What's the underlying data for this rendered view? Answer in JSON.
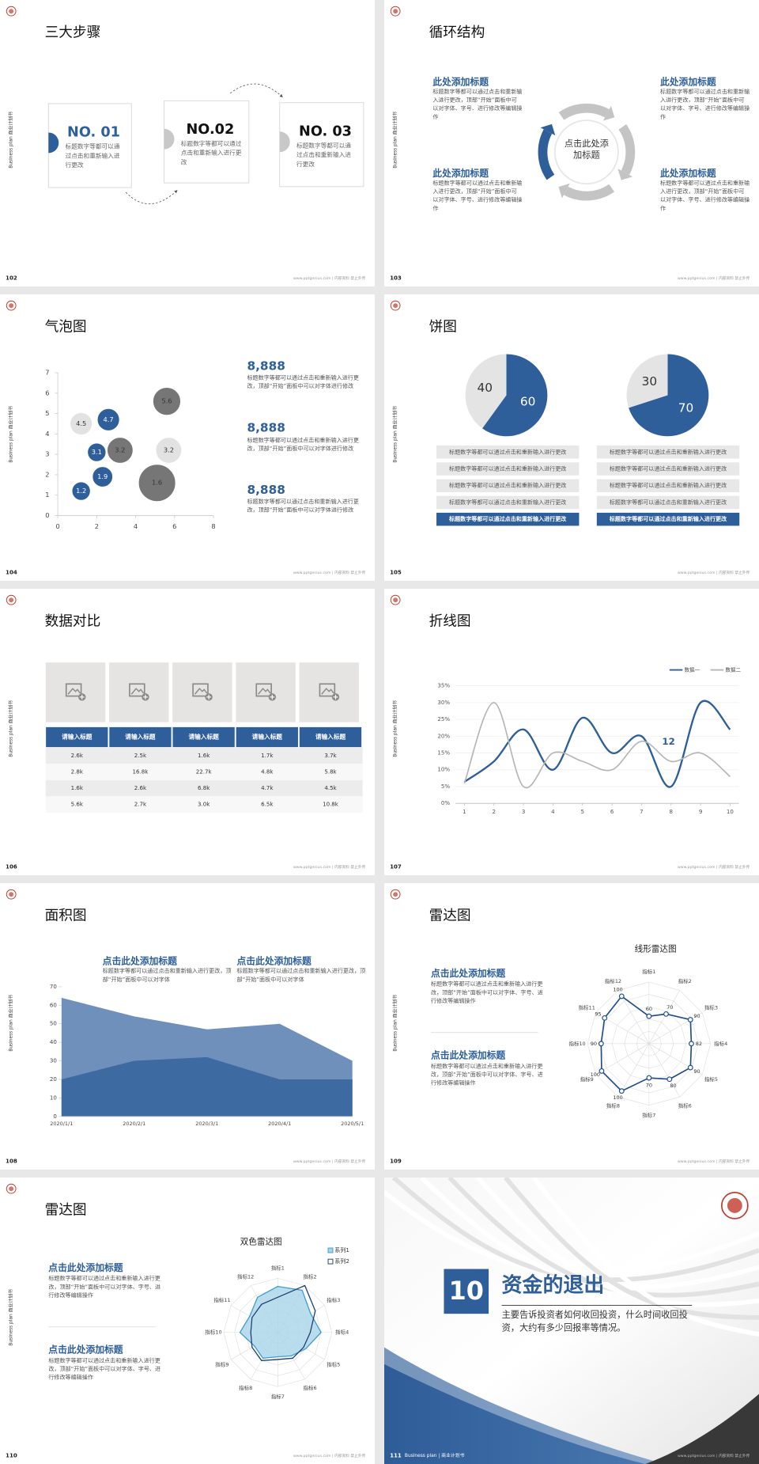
{
  "common": {
    "side_label": "Business plan 商业计划书",
    "footer": "www.pptgenius.com | 内部资料 禁止外传"
  },
  "slides": [
    {
      "page": "102",
      "title": "三大步骤",
      "steps": [
        {
          "no": "NO. 01",
          "text": "标题数字等都可以通过点击和重新输入进行更改"
        },
        {
          "no": "NO.02",
          "text": "标题数字等都可以通过点击和重新输入进行更改"
        },
        {
          "no": "NO. 03",
          "text": "标题数字等都可以通过点击和重新输入进行更改"
        }
      ]
    },
    {
      "page": "103",
      "title": "循环结构",
      "center": "点击此处添加标题",
      "blocks": [
        {
          "title": "此处添加标题",
          "text": "标题数字等都可以通过点击和重新输入进行更改，顶部“开始”面板中可以对字体、字号、进行修改等编辑操作"
        },
        {
          "title": "此处添加标题",
          "text": "标题数字等都可以通过点击和重新输入进行更改，顶部“开始”面板中可以对字体、字号、进行修改等编辑操作"
        },
        {
          "title": "此处添加标题",
          "text": "标题数字等都可以通过点击和重新输入进行更改，顶部“开始”面板中可以对字体、字号、进行修改等编辑操作"
        },
        {
          "title": "此处添加标题",
          "text": "标题数字等都可以通过点击和重新输入进行更改，顶部“开始”面板中可以对字体、字号、进行修改等编辑操作"
        }
      ]
    },
    {
      "page": "104",
      "title": "气泡图",
      "chart_data": {
        "type": "bubble",
        "xlim": [
          0,
          8
        ],
        "xticks": [
          0,
          2,
          4,
          6,
          8
        ],
        "ylim": [
          0,
          7
        ],
        "yticks": [
          0,
          1,
          2,
          3,
          4,
          5,
          6,
          7
        ],
        "series": [
          {
            "color": "#2e5f9a",
            "label_color": "#ffffff",
            "x": [
              1.2,
              2.3,
              2,
              2.6
            ],
            "values": [
              1.2,
              1.9,
              3.1,
              4.7
            ],
            "sizes": [
              10,
              11,
              10,
              12
            ]
          },
          {
            "color": "#e2e2e2",
            "label_color": "#333333",
            "x": [
              1.2,
              5.7
            ],
            "values": [
              4.5,
              3.2
            ],
            "sizes": [
              12,
              14
            ]
          },
          {
            "color": "#767676",
            "label_color": "#333333",
            "x": [
              3.2,
              5.1,
              5.6
            ],
            "values": [
              3.2,
              1.6,
              5.6
            ],
            "sizes": [
              14,
              20,
              15
            ]
          }
        ]
      },
      "items": [
        {
          "value": "8,888",
          "text": "标题数字等都可以通过点击和重新输入进行更改，顶部“开始”面板中可以对字体进行修改"
        },
        {
          "value": "8,888",
          "text": "标题数字等都可以通过点击和重新输入进行更改，顶部“开始”面板中可以对字体进行修改"
        },
        {
          "value": "8,888",
          "text": "标题数字等都可以通过点击和重新输入进行更改，顶部“开始”面板中可以对字体进行修改"
        }
      ]
    },
    {
      "page": "105",
      "title": "饼图",
      "pies": [
        {
          "type": "pie",
          "values": [
            60,
            40
          ],
          "colors": [
            "#2e5f9a",
            "#e4e4e4"
          ],
          "label_colors": [
            "#ffffff",
            "#333333"
          ],
          "items": [
            "标题数字等都可以通过点击和重新输入进行更改",
            "标题数字等都可以通过点击和重新输入进行更改",
            "标题数字等都可以通过点击和重新输入进行更改",
            "标题数字等都可以通过点击和重新输入进行更改",
            "标题数字等都可以通过点击和重新输入进行更改"
          ]
        },
        {
          "type": "pie",
          "values": [
            70,
            30
          ],
          "colors": [
            "#2e5f9a",
            "#e4e4e4"
          ],
          "label_colors": [
            "#ffffff",
            "#333333"
          ],
          "items": [
            "标题数字等都可以通过点击和重新输入进行更改",
            "标题数字等都可以通过点击和重新输入进行更改",
            "标题数字等都可以通过点击和重新输入进行更改",
            "标题数字等都可以通过点击和重新输入进行更改",
            "标题数字等都可以通过点击和重新输入进行更改"
          ]
        }
      ]
    },
    {
      "page": "106",
      "title": "数据对比",
      "table": {
        "header": [
          "请输入标题",
          "请输入标题",
          "请输入标题",
          "请输入标题",
          "请输入标题"
        ],
        "rows": [
          [
            "2.6k",
            "2.5k",
            "1.6k",
            "1.7k",
            "3.7k"
          ],
          [
            "2.8k",
            "16.8k",
            "22.7k",
            "4.8k",
            "5.8k"
          ],
          [
            "1.6k",
            "2.6k",
            "6.8k",
            "4.7k",
            "4.5k"
          ],
          [
            "5.6k",
            "2.7k",
            "3.0k",
            "6.5k",
            "10.8k"
          ]
        ]
      }
    },
    {
      "page": "107",
      "title": "折线图",
      "chart_data": {
        "type": "line",
        "x": [
          1,
          2,
          3,
          4,
          5,
          6,
          7,
          8,
          9,
          10
        ],
        "xlim": [
          0.7,
          10.3
        ],
        "xticks": [
          1,
          2,
          3,
          4,
          5,
          6,
          7,
          8,
          9,
          10
        ],
        "ylim": [
          0,
          35
        ],
        "yticks": [
          {
            "value": 0,
            "label": "0%"
          },
          {
            "value": 5,
            "label": "5%"
          },
          {
            "value": 10,
            "label": "10%"
          },
          {
            "value": 15,
            "label": "15%"
          },
          {
            "value": 20,
            "label": "20%"
          },
          {
            "value": 25,
            "label": "25%"
          },
          {
            "value": 30,
            "label": "30%"
          },
          {
            "value": 35,
            "label": "35%"
          }
        ],
        "grid": true,
        "legend": "top-right",
        "annotation": "12",
        "series": [
          {
            "name": "数据一",
            "color": "#2e5f9a",
            "values": [
              6.4,
              12.5,
              22,
              10,
              25.5,
              15,
              20,
              5,
              30,
              22
            ]
          },
          {
            "name": "数据二",
            "color": "#b5b5b5",
            "values": [
              6,
              30,
              5,
              15,
              12.5,
              10,
              18.5,
              12.5,
              15,
              8
            ]
          }
        ]
      }
    },
    {
      "page": "108",
      "title": "面积图",
      "chart_data": {
        "type": "area",
        "categories": [
          "2020/1/1",
          "2020/2/1",
          "2020/3/1",
          "2020/4/1",
          "2020/5/1"
        ],
        "ylim": [
          0,
          70
        ],
        "yticks": [
          0,
          10,
          20,
          30,
          40,
          50,
          60,
          70
        ],
        "series": [
          {
            "color": "#7090bc",
            "values": [
              64,
              54,
              47,
              50,
              30
            ]
          },
          {
            "color": "#3d6aa1",
            "values": [
              20,
              30,
              32,
              20,
              20
            ]
          }
        ]
      },
      "blocks": [
        {
          "title": "点击此处添加标题",
          "text": "标题数字等都可以通过点击和重新输入进行更改，顶部“开始”面板中可以对字体"
        },
        {
          "title": "点击此处添加标题",
          "text": "标题数字等都可以通过点击和重新输入进行更改，顶部“开始”面板中可以对字体"
        }
      ]
    },
    {
      "page": "109",
      "title": "雷达图",
      "chart_data": {
        "type": "radar",
        "title": "线形雷达图",
        "categories": [
          "指标1",
          "指标2",
          "指标3",
          "指标4",
          "指标5",
          "指标6",
          "指标7",
          "指标8",
          "指标9",
          "指标10",
          "指标11",
          "指标12"
        ],
        "rlim": [
          20,
          110
        ],
        "series": [
          {
            "color": "#1f4e8c",
            "values": [
              60,
              70,
              90,
              82,
              90,
              80,
              70,
              100,
              100,
              90,
              95,
              100
            ]
          }
        ]
      },
      "blocks": [
        {
          "title": "点击此处添加标题",
          "text": "标题数字等都可以通过点击和重新输入进行更改，顶部“开始”面板中可以对字体、字号、进行修改等编辑操作"
        },
        {
          "title": "点击此处添加标题",
          "text": "标题数字等都可以通过点击和重新输入进行更改，顶部“开始”面板中可以对字体、字号、进行修改等编辑操作"
        }
      ]
    },
    {
      "page": "110",
      "title": "雷达图",
      "chart_data": {
        "type": "radar",
        "title": "双色雷达图",
        "legend": "top-right",
        "categories": [
          "指标1",
          "指标2",
          "指标3",
          "指标4",
          "指标5",
          "指标6",
          "指标7",
          "指标8",
          "指标9",
          "指标10",
          "指标11",
          "指标12"
        ],
        "rlim": [
          0,
          100
        ],
        "series": [
          {
            "name": "系列1",
            "color": "#3f9ccc",
            "fill": "#a9d4ea",
            "values": [
              85,
              90,
              70,
              80,
              60,
              50,
              45,
              55,
              50,
              70,
              60,
              75
            ]
          },
          {
            "name": "系列2",
            "color": "#1f3f73",
            "values": [
              65,
              100,
              80,
              60,
              55,
              55,
              50,
              60,
              55,
              50,
              55,
              60
            ]
          }
        ]
      },
      "blocks": [
        {
          "title": "点击此处添加标题",
          "text": "标题数字等都可以通过点击和重新输入进行更改，顶部“开始”面板中可以对字体、字号、进行修改等编辑操作"
        },
        {
          "title": "点击此处添加标题",
          "text": "标题数字等都可以通过点击和重新输入进行更改，顶部“开始”面板中可以对字体、字号、进行修改等编辑操作"
        }
      ]
    },
    {
      "page": "111",
      "number": "10",
      "heading": "资金的退出",
      "text": "主要告诉投资者如何收回投资，什么时间收回投资，大约有多少回报率等情况。",
      "footer_label": "Business plan | 商业计划书"
    }
  ]
}
